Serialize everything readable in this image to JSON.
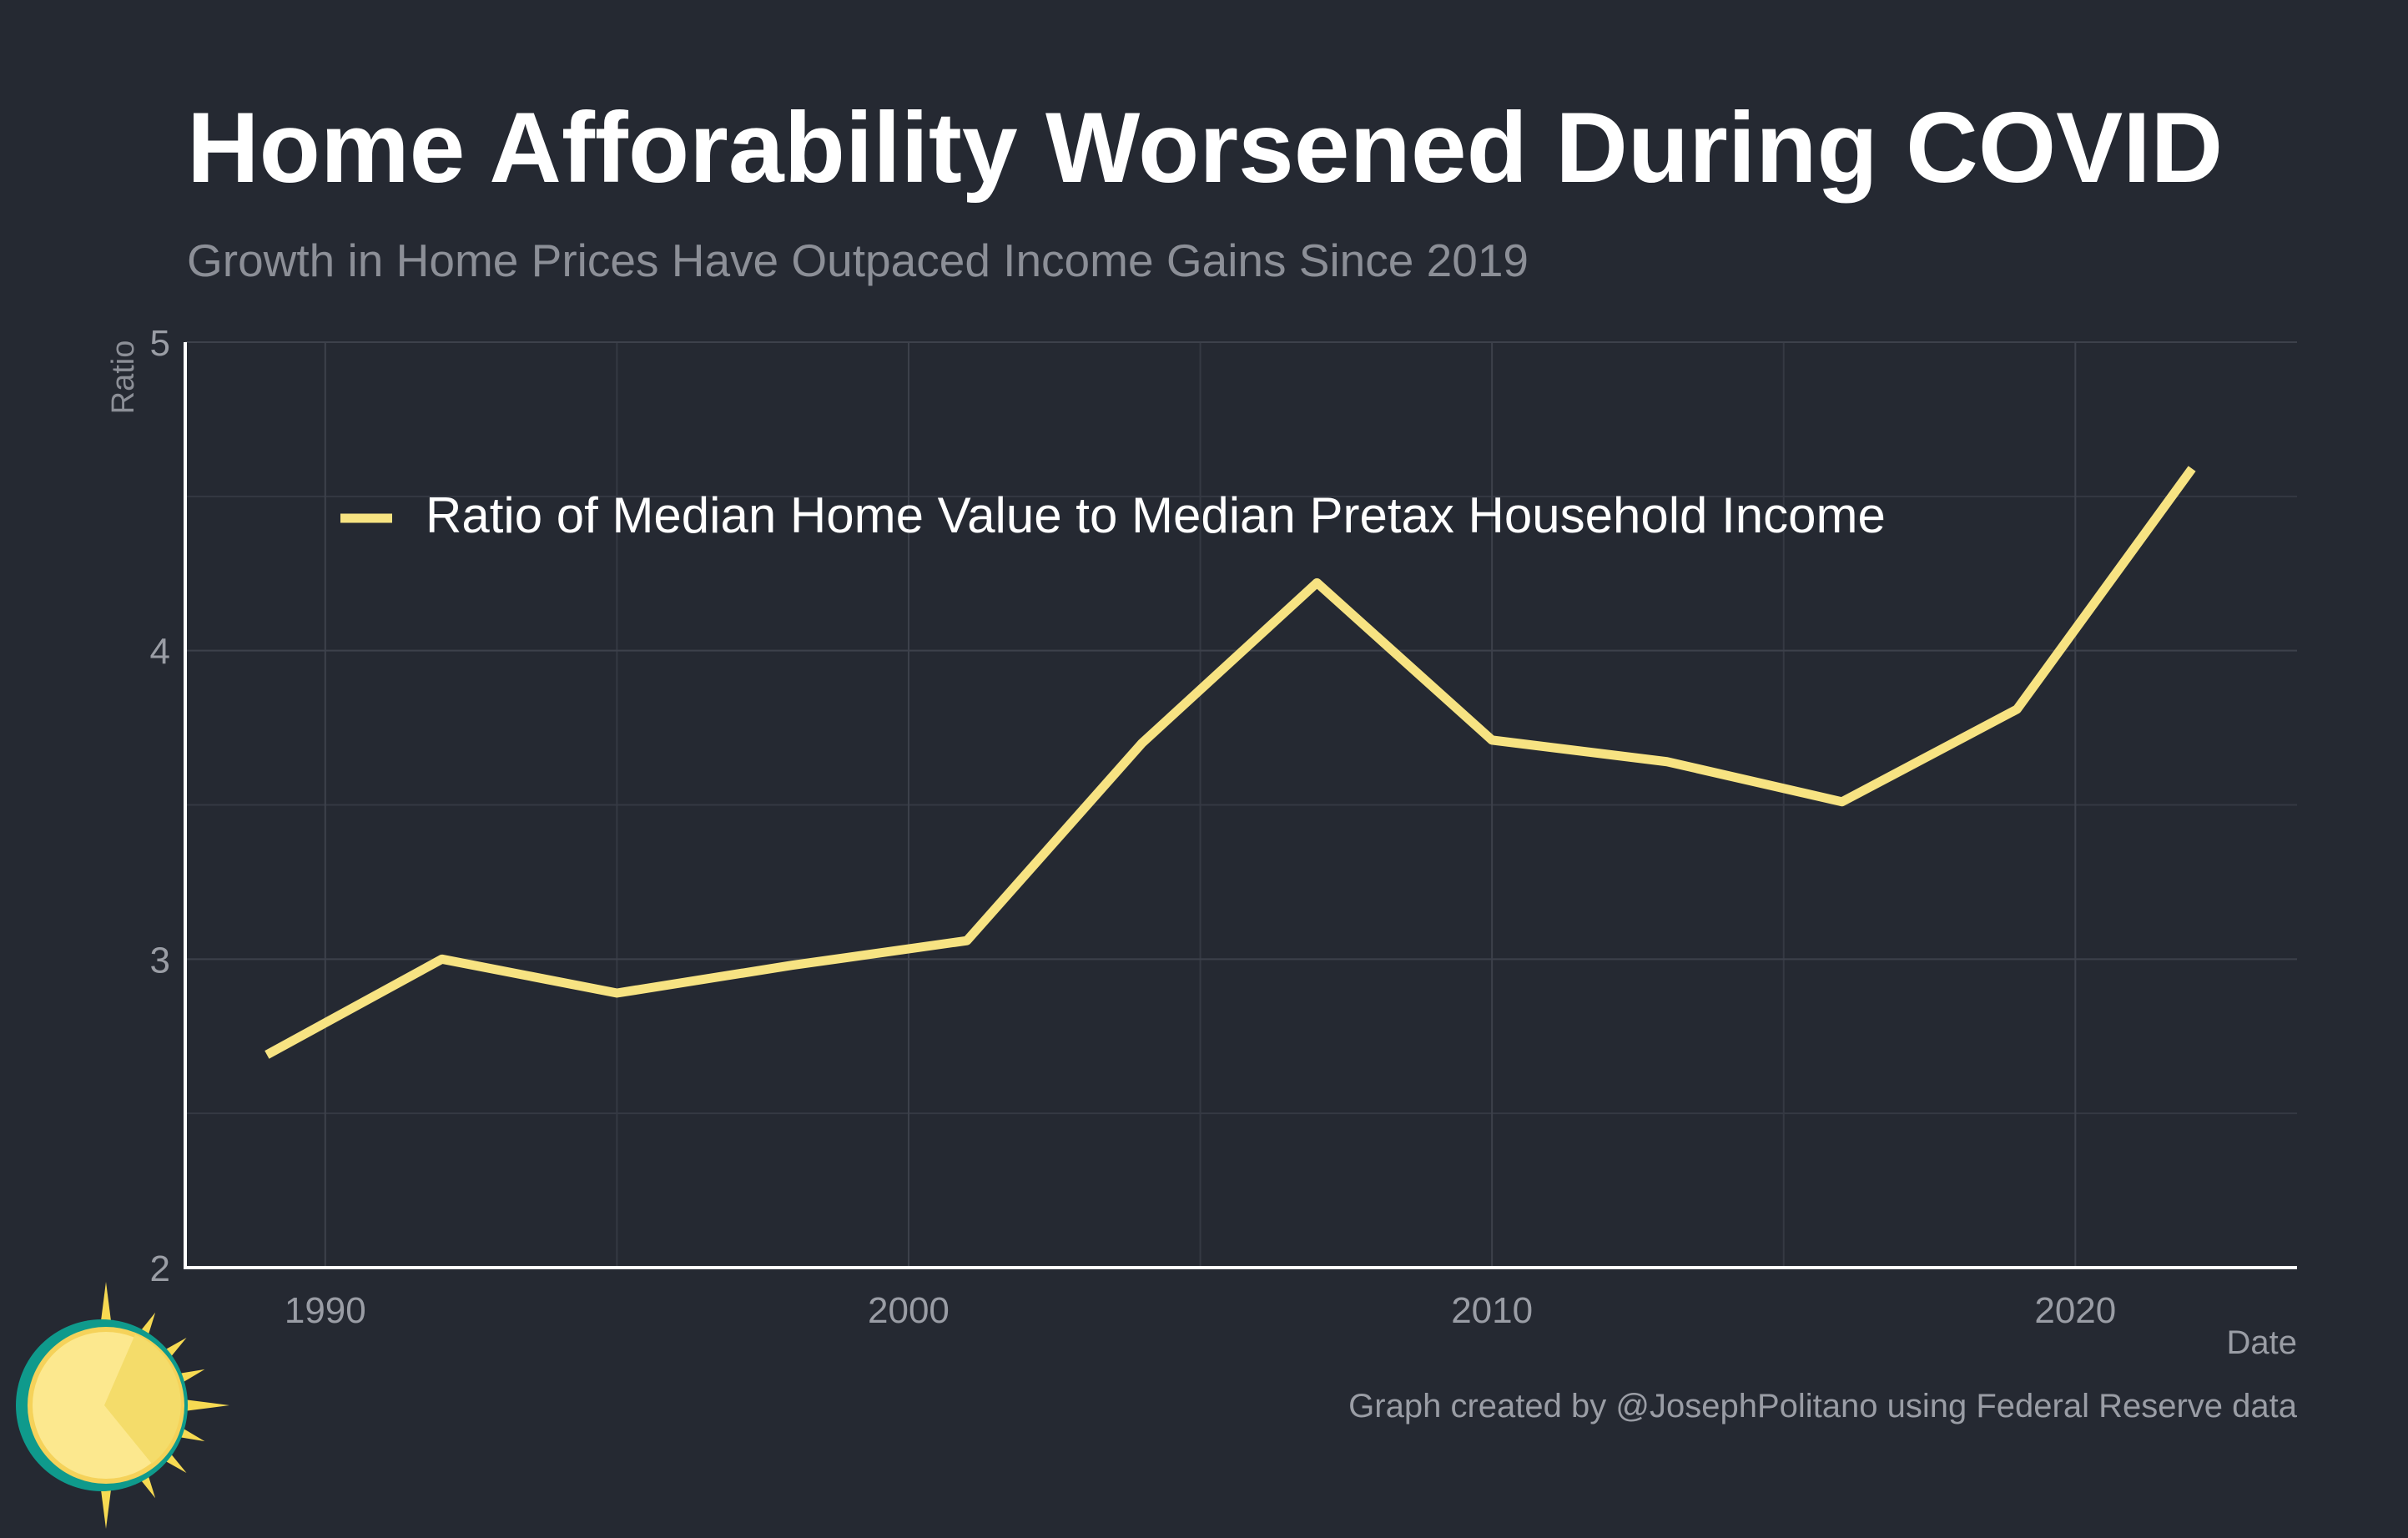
{
  "header": {
    "title": "Home Afforability Worsened During COVID",
    "subtitle": "Growth in Home Prices Have Outpaced Income Gains Since 2019"
  },
  "footer": {
    "caption": "Graph created by @JosephPolitano using Federal Reserve data"
  },
  "logo": {
    "icon": "sun-logo-icon"
  },
  "chart_data": {
    "type": "line",
    "title": "Home Afforability Worsened During COVID",
    "subtitle": "Growth in Home Prices Have Outpaced Income Gains Since 2019",
    "xlabel": "Date",
    "ylabel": "Ratio",
    "xlim": [
      1987.6,
      2023.8
    ],
    "ylim": [
      2,
      5
    ],
    "x_ticks": [
      1990,
      2000,
      2010,
      2020
    ],
    "y_ticks": [
      2,
      3,
      4,
      5
    ],
    "grid": true,
    "legend_position": "top-left",
    "series": [
      {
        "name": "Ratio of Median Home Value to Median Pretax Household Income",
        "color": "#f7e382",
        "x": [
          1989,
          1992,
          1995,
          1998,
          2001,
          2004,
          2007,
          2010,
          2013,
          2016,
          2019,
          2022
        ],
        "y": [
          2.69,
          3.0,
          2.89,
          2.98,
          3.06,
          3.7,
          4.22,
          3.71,
          3.64,
          3.51,
          3.81,
          4.59
        ]
      }
    ]
  }
}
